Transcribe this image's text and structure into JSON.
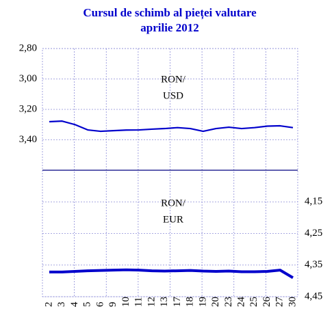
{
  "chart_data": {
    "type": "line",
    "title": "Cursul de schimb al pieței valutare",
    "subtitle": "aprilie 2012",
    "categories": [
      "2",
      "3",
      "4",
      "5",
      "6",
      "9",
      "10",
      "11",
      "12",
      "13",
      "17",
      "18",
      "19",
      "20",
      "23",
      "24",
      "25",
      "26",
      "27",
      "30"
    ],
    "ylim": [
      3.6,
      2.8
    ],
    "yticks": [
      {
        "value": 2.8,
        "label": "2,80"
      },
      {
        "value": 3.0,
        "label": "3,00"
      },
      {
        "value": 3.2,
        "label": "3,20"
      },
      {
        "value": 3.4,
        "label": "3,40"
      }
    ],
    "y2lim": [
      4.45,
      4.05
    ],
    "y2ticks": [
      {
        "value": 4.15,
        "label": "4,15"
      },
      {
        "value": 4.25,
        "label": "4,25"
      },
      {
        "value": 4.35,
        "label": "4,35"
      },
      {
        "value": 4.45,
        "label": "4,45"
      }
    ],
    "grid": true,
    "series": [
      {
        "name": [
          "RON/",
          "USD"
        ],
        "color": "#0000cc",
        "values": [
          3.281,
          3.277,
          3.3,
          3.335,
          3.344,
          3.34,
          3.336,
          3.335,
          3.33,
          3.326,
          3.32,
          3.326,
          3.344,
          3.326,
          3.317,
          3.326,
          3.32,
          3.31,
          3.308,
          3.32
        ]
      },
      {
        "name": [
          "RON/",
          "EUR"
        ],
        "color": "#0000cc",
        "axis": "y2",
        "values": [
          4.372,
          4.372,
          4.37,
          4.368,
          4.367,
          4.366,
          4.365,
          4.366,
          4.368,
          4.369,
          4.368,
          4.367,
          4.369,
          4.37,
          4.369,
          4.371,
          4.371,
          4.37,
          4.366,
          4.39
        ]
      }
    ]
  }
}
